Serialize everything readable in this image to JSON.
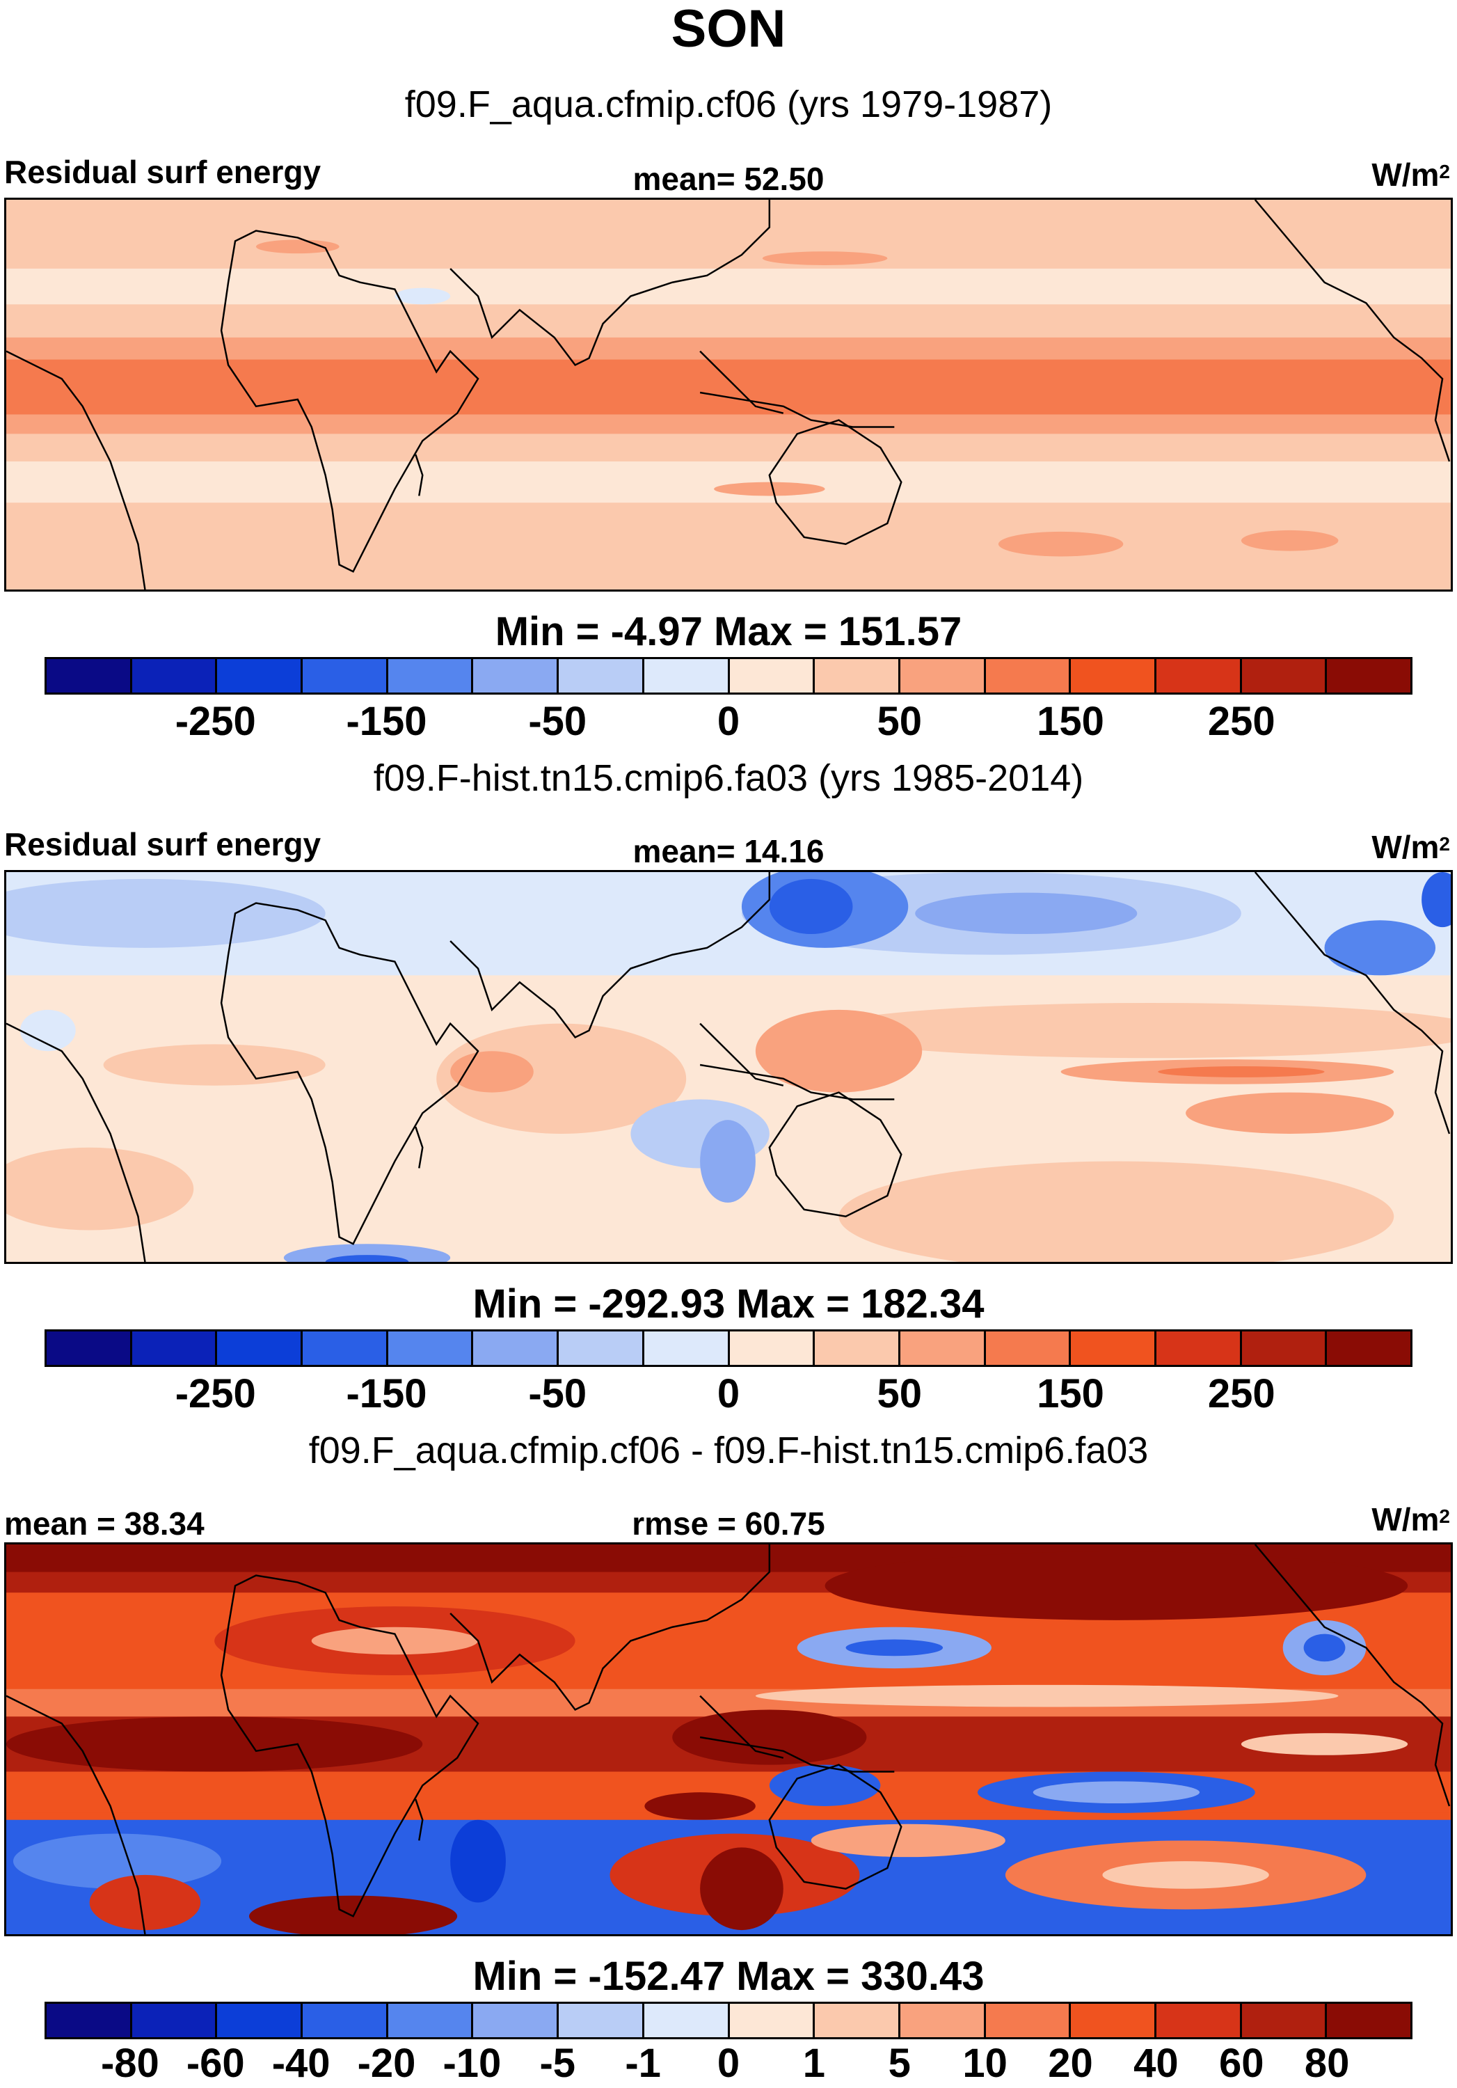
{
  "title": "SON",
  "panels": [
    {
      "subtitle": "f09.F_aqua.cfmip.cf06 (yrs 1979-1987)",
      "left_label": "Residual surf energy",
      "center_label": "mean=  52.50",
      "unit_base": "W/m",
      "unit_exp": "2",
      "minmax": "Min =  -4.97 Max = 151.57",
      "field": "aqua",
      "colorbar_labels": [
        "-250",
        "-150",
        "-50",
        "0",
        "50",
        "150",
        "250"
      ]
    },
    {
      "subtitle": "f09.F-hist.tn15.cmip6.fa03 (yrs 1985-2014)",
      "left_label": "Residual surf energy",
      "center_label": "mean=  14.16",
      "unit_base": "W/m",
      "unit_exp": "2",
      "minmax": "Min = -292.93 Max = 182.34",
      "field": "hist",
      "colorbar_labels": [
        "-250",
        "-150",
        "-50",
        "0",
        "50",
        "150",
        "250"
      ]
    },
    {
      "subtitle": "f09.F_aqua.cfmip.cf06 - f09.F-hist.tn15.cmip6.fa03",
      "left_label": "mean =  38.34",
      "center_label": "rmse =  60.75",
      "unit_base": "W/m",
      "unit_exp": "2",
      "minmax": "Min = -152.47 Max = 330.43",
      "field": "diff",
      "colorbar_labels": [
        "-80",
        "-60",
        "-40",
        "-20",
        "-10",
        "-5",
        "-1",
        "0",
        "1",
        "5",
        "10",
        "20",
        "40",
        "60",
        "80"
      ]
    }
  ],
  "colorbar_colors": [
    "#0a0a86",
    "#0b22b8",
    "#0c3ed8",
    "#2a5fe6",
    "#5585ee",
    "#8aa9f2",
    "#b9cdf6",
    "#dde9fb",
    "#fde7d6",
    "#fbc9ad",
    "#f9a27e",
    "#f57a4e",
    "#f0531f",
    "#d73418",
    "#b0200f",
    "#8a0c05"
  ],
  "colors": {
    "ocean_line": "#000000",
    "background": "#ffffff"
  }
}
